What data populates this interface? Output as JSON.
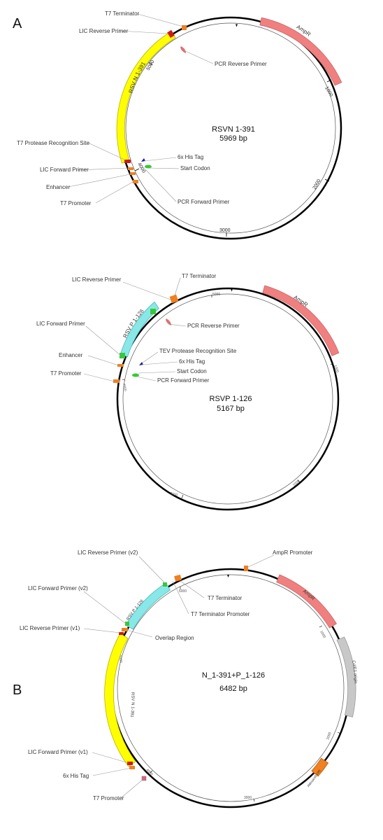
{
  "panels": {
    "a": "A",
    "b": "B"
  },
  "map1": {
    "name": "RSVN 1-391",
    "size": "5969 bp",
    "ticks": [
      "1000",
      "2000",
      "3000",
      "4000",
      "5000"
    ],
    "features": {
      "ampr": "AmpR",
      "insert": "RSV N 1-391"
    },
    "labels": {
      "t7_terminator": "T7 Terminator",
      "lic_reverse": "LIC Reverse Primer",
      "pcr_reverse": "PCR Reverse Primer",
      "t7_protease": "T7 Protease Recognition Site",
      "his_tag": "6x His Tag",
      "lic_forward": "LIC Forward Primer",
      "start_codon": "Start Codon",
      "enhancer": "Enhancer",
      "t7_promoter": "T7 Promoter",
      "pcr_forward": "PCR Forward Primer"
    }
  },
  "map2": {
    "name": "RSVP 1-126",
    "size": "5167 bp",
    "ticks": [
      "5000",
      "1000",
      "2000",
      "3000",
      "4000"
    ],
    "features": {
      "ampr": "AmpR",
      "insert": "RSV P 1-126"
    },
    "labels": {
      "lic_reverse": "LIC Reverse Primer",
      "t7_terminator": "T7 Terminator",
      "lic_forward": "LIC Forward Primer",
      "pcr_reverse": "PCR Reverse Primer",
      "tev_protease": "TEV Protease Recognition Site",
      "enhancer": "Enhancer",
      "his_tag": "6x His Tag",
      "t7_promoter": "T7 Promoter",
      "start_codon": "Start Codon",
      "pcr_forward": "PCR Forward Primer"
    }
  },
  "map3": {
    "name": "N_1-391+P_1-126",
    "size": "6482 bp",
    "ticks": [
      "6000",
      "1000",
      "2000",
      "3000",
      "4000",
      "5000"
    ],
    "features": {
      "ampr": "AmpR",
      "insert_p": "RSV P 1-126",
      "insert_n": "RSV N 1-391",
      "cole1": "ColE1 origin",
      "promoter": "lacI promoter"
    },
    "labels": {
      "ampr_promoter": "AmpR Promoter",
      "lic_reverse_v2": "LIC Reverse Primer (v2)",
      "t7_terminator": "T7 Terminator",
      "lic_forward_v2": "LIC Forward Primer (v2)",
      "t7_terminator_promoter": "T7 Terminator Promoter",
      "lic_reverse_v1": "LIC Reverse Primer (v1)",
      "overlap": "Overlap Region",
      "lic_forward_v1": "LIC Forward Primer (v1)",
      "his_tag": "6x His Tag",
      "t7_promoter": "T7 Promoter"
    }
  }
}
